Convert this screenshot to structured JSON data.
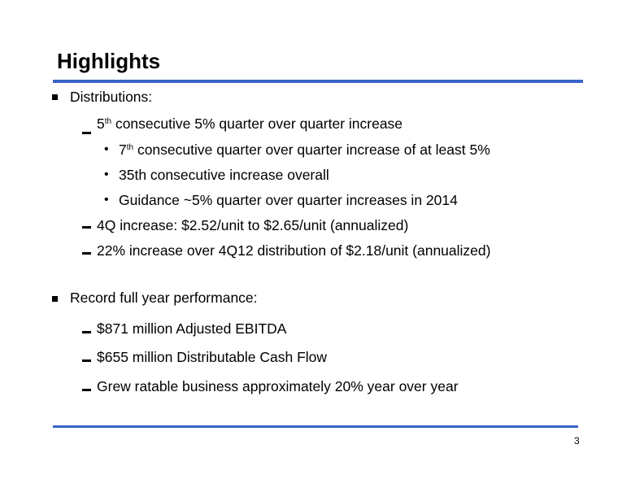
{
  "title": "Highlights",
  "page_number": "3",
  "sections": [
    {
      "heading": "Distributions:",
      "items": [
        {
          "pre": "5",
          "sup": "th",
          "post": " consecutive 5% quarter over quarter increase"
        },
        {
          "pre": "7",
          "sup": "th",
          "post": " consecutive quarter over quarter increase of at least 5%"
        },
        {
          "text": "35th consecutive increase overall"
        },
        {
          "text": "Guidance ~5% quarter over quarter increases in 2014"
        },
        {
          "text": "4Q increase: $2.52/unit to $2.65/unit (annualized)"
        },
        {
          "text": "22% increase over 4Q12 distribution of $2.18/unit (annualized)"
        }
      ]
    },
    {
      "heading": "Record full year performance:",
      "items": [
        {
          "text": "$871 million Adjusted EBITDA"
        },
        {
          "text": "$655 million Distributable Cash Flow"
        },
        {
          "text": "Grew ratable business approximately 20% year over year"
        }
      ]
    }
  ],
  "colors": {
    "accent_rule": "#3a63c8"
  }
}
